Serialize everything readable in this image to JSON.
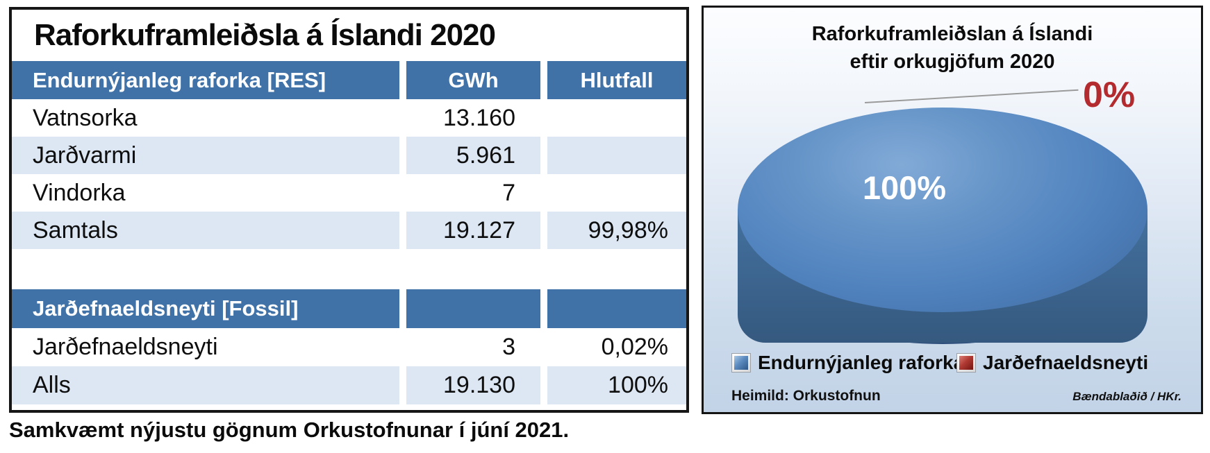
{
  "table_panel": {
    "title": "Raforkuframleiðsla á Íslandi 2020",
    "columns": [
      "Endurnýjanleg raforka [RES]",
      "GWh",
      "Hlutfall"
    ],
    "res_rows": [
      {
        "label": "Vatnsorka",
        "gwh": "13.160",
        "share": ""
      },
      {
        "label": "Jarðvarmi",
        "gwh": "5.961",
        "share": ""
      },
      {
        "label": "Vindorka",
        "gwh": "7",
        "share": ""
      },
      {
        "label": "Samtals",
        "gwh": "19.127",
        "share": "99,98%"
      }
    ],
    "fossil_header": "Jarðefnaeldsneyti [Fossil]",
    "fossil_rows": [
      {
        "label": "Jarðefnaeldsneyti",
        "gwh": "3",
        "share": "0,02%"
      },
      {
        "label": "Alls",
        "gwh": "19.130",
        "share": "100%"
      }
    ],
    "footnote": "Samkvæmt nýjustu gögnum Orkustofnunar í júní 2021."
  },
  "chart_panel": {
    "title_line1": "Raforkuframleiðslan á Íslandi",
    "title_line2": "eftir orkugjöfum 2020",
    "main_slice_label": "100%",
    "small_slice_label": "0%",
    "legend": [
      {
        "label": "Endurnýjanleg raforka",
        "color": "#4F81BD"
      },
      {
        "label": "Jarðefnaeldsneyti",
        "color": "#A5201D"
      }
    ],
    "source": "Heimild: Orkustofnun",
    "credit": "Bændablaðið / HKr."
  },
  "colors": {
    "table_header_blue": "#4072A8",
    "table_row_light_blue": "#DCE7F3",
    "pie_blue": "#4F81BD",
    "pie_side_blue": "#3A6294",
    "fossil_red": "#B32B2F",
    "panel_gradient_bottom": "#C2D3E7"
  },
  "chart_data": [
    {
      "type": "pie",
      "title": "Raforkuframleiðslan á Íslandi eftir orkugjöfum 2020",
      "labels": [
        "Endurnýjanleg raforka",
        "Jarðefnaeldsneyti"
      ],
      "values": [
        99.98,
        0.02
      ],
      "value_labels": [
        "100%",
        "0%"
      ],
      "colors": [
        "#4F81BD",
        "#A5201D"
      ],
      "legend_position": "bottom",
      "style": "3d"
    },
    {
      "type": "table",
      "title": "Raforkuframleiðsla á Íslandi 2020",
      "columns": [
        "Endurnýjanleg raforka [RES]",
        "GWh",
        "Hlutfall"
      ],
      "rows": [
        [
          "Vatnsorka",
          "13.160",
          ""
        ],
        [
          "Jarðvarmi",
          "5.961",
          ""
        ],
        [
          "Vindorka",
          "7",
          ""
        ],
        [
          "Samtals",
          "19.127",
          "99,98%"
        ],
        [
          "Jarðefnaeldsneyti [Fossil]",
          "",
          ""
        ],
        [
          "Jarðefnaeldsneyti",
          "3",
          "0,02%"
        ],
        [
          "Alls",
          "19.130",
          "100%"
        ]
      ],
      "footnote": "Samkvæmt nýjustu gögnum Orkustofnunar í júní 2021."
    }
  ]
}
